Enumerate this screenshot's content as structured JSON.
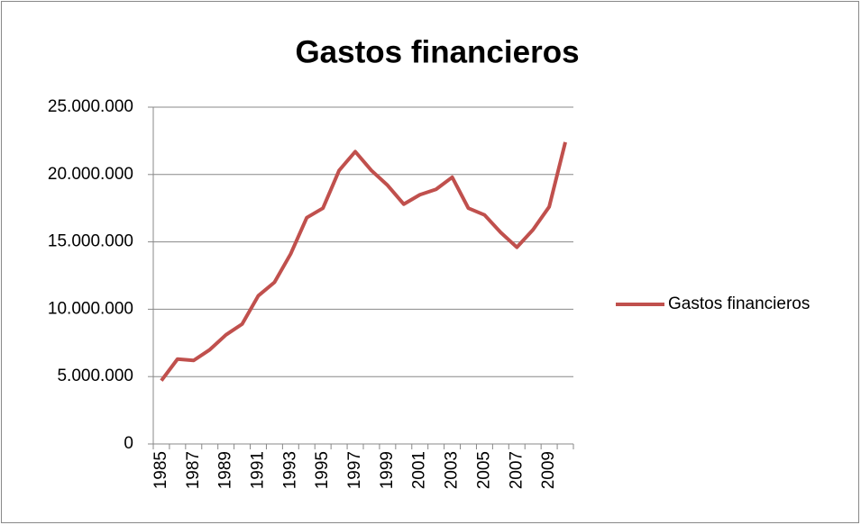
{
  "chart_data": {
    "type": "line",
    "title": "Gastos financieros",
    "categories": [
      "1985",
      null,
      "1987",
      null,
      "1989",
      null,
      "1991",
      null,
      "1993",
      null,
      "1995",
      null,
      "1997",
      null,
      "1999",
      null,
      "2001",
      null,
      "2003",
      null,
      "2005",
      null,
      "2007",
      null,
      "2009",
      null
    ],
    "series": [
      {
        "name": "Gastos financieros",
        "color": "#c0504d",
        "values": [
          4700000,
          6300000,
          6200000,
          7000000,
          8100000,
          8900000,
          11000000,
          12000000,
          14100000,
          16800000,
          17500000,
          20300000,
          21700000,
          20300000,
          19200000,
          17800000,
          18500000,
          18900000,
          19800000,
          17500000,
          17000000,
          15700000,
          14600000,
          15900000,
          17600000,
          22400000
        ]
      }
    ],
    "ylim": [
      0,
      25000000
    ],
    "yticks": [
      0,
      {
        "value": 5000000,
        "label": "5.000.000"
      },
      {
        "value": 10000000,
        "label": "10.000.000"
      },
      {
        "value": 15000000,
        "label": "15.000.000"
      },
      {
        "value": 20000000,
        "label": "20.000.000"
      },
      {
        "value": 25000000,
        "label": "25.000.000"
      }
    ],
    "grid": true,
    "legend": "right"
  }
}
